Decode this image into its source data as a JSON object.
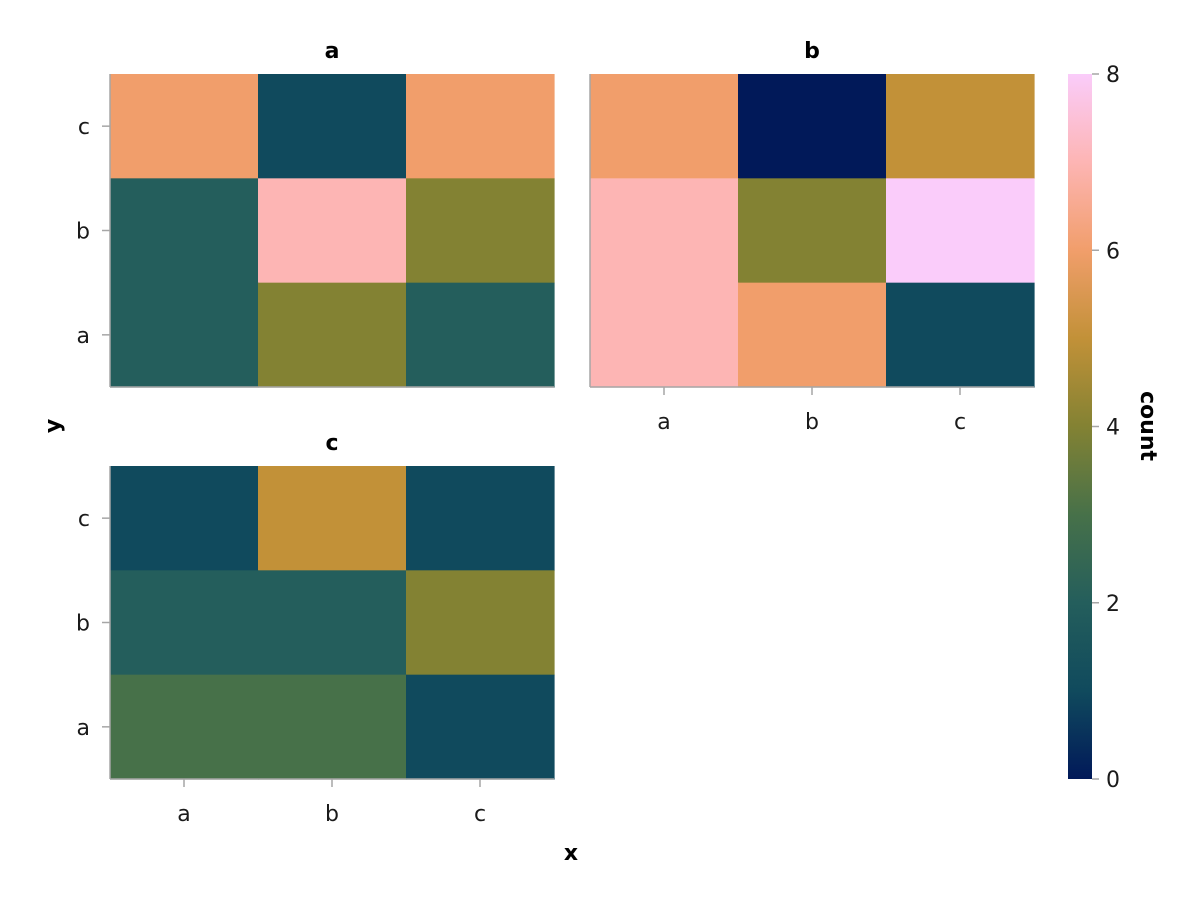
{
  "chart_data": {
    "type": "heatmap",
    "xlabel": "x",
    "ylabel": "y",
    "x_categories": [
      "a",
      "b",
      "c"
    ],
    "y_categories": [
      "a",
      "b",
      "c"
    ],
    "facets": [
      {
        "title": "a",
        "cells": [
          {
            "x": "a",
            "y": "c",
            "value": 6
          },
          {
            "x": "b",
            "y": "c",
            "value": 1
          },
          {
            "x": "c",
            "y": "c",
            "value": 6
          },
          {
            "x": "a",
            "y": "b",
            "value": 2
          },
          {
            "x": "b",
            "y": "b",
            "value": 7
          },
          {
            "x": "c",
            "y": "b",
            "value": 4
          },
          {
            "x": "a",
            "y": "a",
            "value": 2
          },
          {
            "x": "b",
            "y": "a",
            "value": 4
          },
          {
            "x": "c",
            "y": "a",
            "value": 2
          }
        ]
      },
      {
        "title": "b",
        "cells": [
          {
            "x": "a",
            "y": "c",
            "value": 6
          },
          {
            "x": "b",
            "y": "c",
            "value": 0
          },
          {
            "x": "c",
            "y": "c",
            "value": 5
          },
          {
            "x": "a",
            "y": "b",
            "value": 7
          },
          {
            "x": "b",
            "y": "b",
            "value": 4
          },
          {
            "x": "c",
            "y": "b",
            "value": 8
          },
          {
            "x": "a",
            "y": "a",
            "value": 7
          },
          {
            "x": "b",
            "y": "a",
            "value": 6
          },
          {
            "x": "c",
            "y": "a",
            "value": 1
          }
        ]
      },
      {
        "title": "c",
        "cells": [
          {
            "x": "a",
            "y": "c",
            "value": 1
          },
          {
            "x": "b",
            "y": "c",
            "value": 5
          },
          {
            "x": "c",
            "y": "c",
            "value": 1
          },
          {
            "x": "a",
            "y": "b",
            "value": 2
          },
          {
            "x": "b",
            "y": "b",
            "value": 2
          },
          {
            "x": "c",
            "y": "b",
            "value": 4
          },
          {
            "x": "a",
            "y": "a",
            "value": 3
          },
          {
            "x": "b",
            "y": "a",
            "value": 3
          },
          {
            "x": "c",
            "y": "a",
            "value": 1
          }
        ]
      }
    ],
    "colorbar": {
      "label": "count",
      "range": [
        0,
        8
      ],
      "ticks": [
        0,
        2,
        4,
        6,
        8
      ],
      "colors": [
        "#011959",
        "#104A5D",
        "#245E5C",
        "#477149",
        "#838233",
        "#C29138",
        "#F19E6B",
        "#FDB5B4",
        "#FACCFA"
      ]
    },
    "grid": false,
    "legend_placement": "right"
  }
}
